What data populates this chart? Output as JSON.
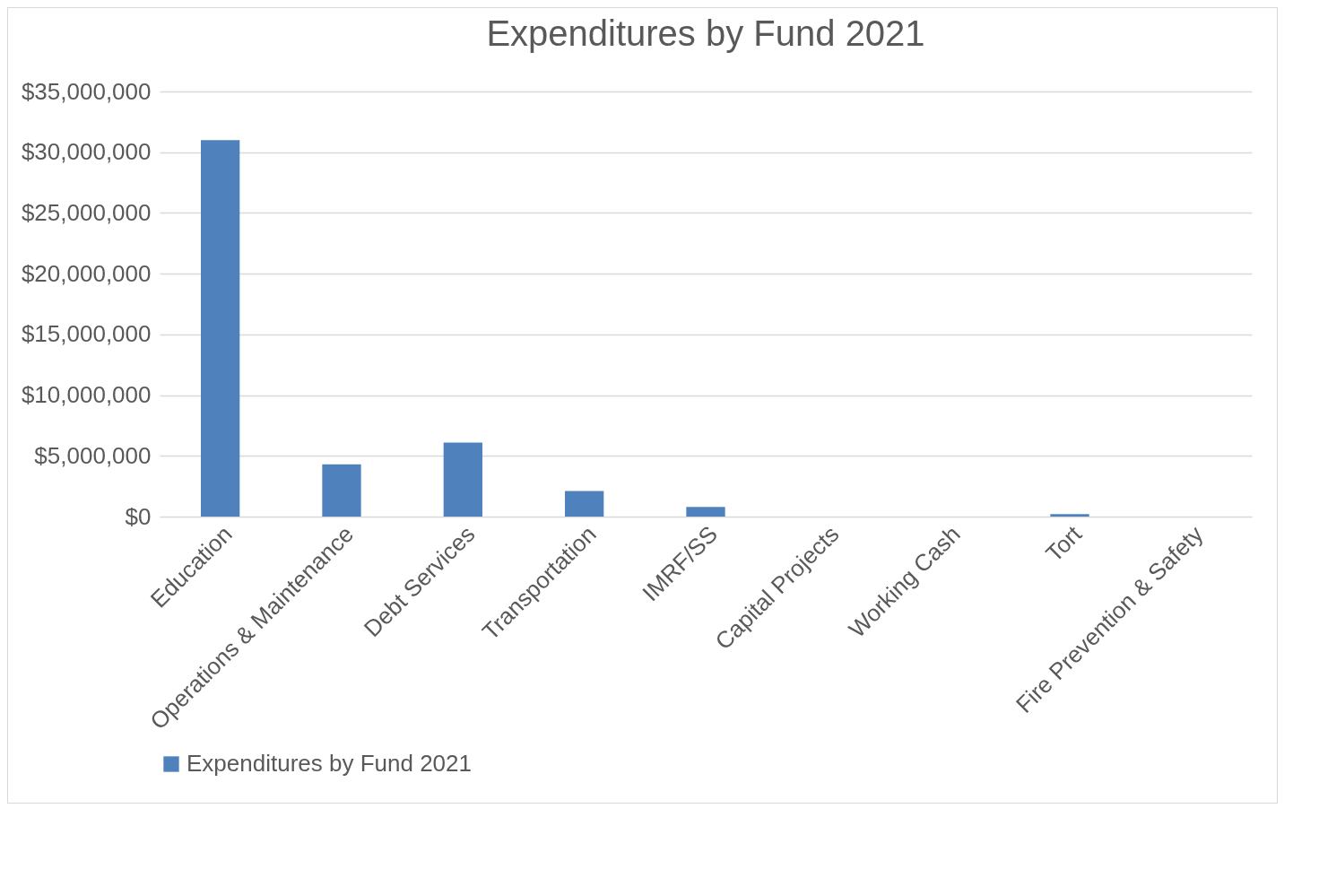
{
  "chart_data": {
    "type": "bar",
    "title": "Expenditures by Fund 2021",
    "categories": [
      "Education",
      "Operations & Maintenance",
      "Debt Services",
      "Transportation",
      "IMRF/SS",
      "Capital Projects",
      "Working Cash",
      "Tort",
      "Fire Prevention & Safety"
    ],
    "series": [
      {
        "name": "Expenditures by Fund 2021",
        "color": "#4f81bd",
        "values": [
          31000000,
          4300000,
          6100000,
          2100000,
          800000,
          0,
          0,
          200000,
          0
        ]
      }
    ],
    "ylim": [
      0,
      35000000
    ],
    "yticks": [
      {
        "value": 0,
        "label": "$0"
      },
      {
        "value": 5000000,
        "label": "$5,000,000"
      },
      {
        "value": 10000000,
        "label": "$10,000,000"
      },
      {
        "value": 15000000,
        "label": "$15,000,000"
      },
      {
        "value": 20000000,
        "label": "$20,000,000"
      },
      {
        "value": 25000000,
        "label": "$25,000,000"
      },
      {
        "value": 30000000,
        "label": "$30,000,000"
      },
      {
        "value": 35000000,
        "label": "$35,000,000"
      }
    ],
    "grid": "y",
    "legend": "bottom"
  }
}
